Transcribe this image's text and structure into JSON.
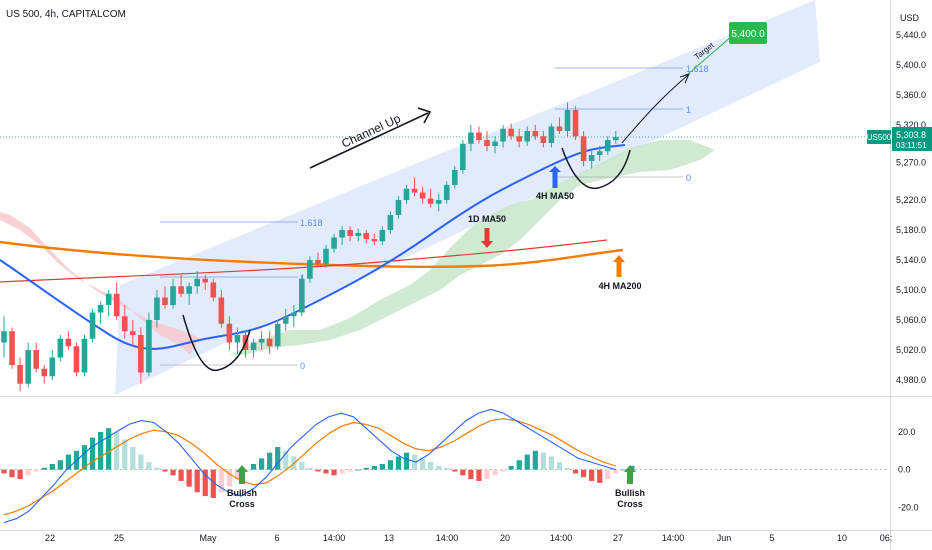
{
  "header": {
    "title": "US 500, 4h, CAPITALCOM"
  },
  "currency": "USD",
  "colors": {
    "up": "#26a69a",
    "down": "#ef5350",
    "ma50": "#2962ff",
    "ma200": "#f57c00",
    "ma1d": "#e53935",
    "channel": "#dce7fb",
    "cloud_bull": "#c8e6c9",
    "cloud_bear": "#f8c8cc",
    "fib": "#5b8def",
    "price_tag": "#089981",
    "target": "#2db84d",
    "macd_line": "#2962ff",
    "signal_line": "#f57c00"
  },
  "chart_data": [
    {
      "type": "candlestick",
      "title": "US 500, 4h, CAPITALCOM",
      "symbol": "US500",
      "last_price": "5,303.8",
      "countdown": "03:11:51",
      "ylim": [
        4960,
        5480
      ],
      "y_ticks": [
        "4,980.0",
        "5,020.0",
        "5,060.0",
        "5,100.0",
        "5,140.0",
        "5,180.0",
        "5,220.0",
        "5,270.0",
        "5,320.0",
        "5,360.0",
        "5,400.0",
        "5,440.0"
      ],
      "x_ticks": [
        "22",
        "25",
        "May",
        "6",
        "14:00",
        "13",
        "14:00",
        "20",
        "14:00",
        "27",
        "14:00",
        "Jun",
        "5",
        "10",
        "06:"
      ],
      "annotations": {
        "channel": "Channel Up",
        "target_label": "Target",
        "target_value": "5,400.0",
        "ma50_4h": "4H MA50",
        "ma50_1d": "1D MA50",
        "ma200_4h": "4H MA200",
        "fib_first": [
          "1.618",
          "1",
          "0"
        ],
        "fib_second": [
          "1.618",
          "1",
          "0"
        ]
      },
      "candles": [
        [
          5030,
          5065,
          5010,
          5045
        ],
        [
          5045,
          5050,
          4995,
          5000
        ],
        [
          5000,
          5010,
          4965,
          4975
        ],
        [
          4975,
          5030,
          4970,
          5020
        ],
        [
          5020,
          5030,
          4990,
          4995
        ],
        [
          4995,
          5000,
          4975,
          4985
        ],
        [
          4985,
          5020,
          4980,
          5010
        ],
        [
          5010,
          5040,
          5005,
          5035
        ],
        [
          5035,
          5045,
          5020,
          5025
        ],
        [
          5025,
          5030,
          4985,
          4990
        ],
        [
          4990,
          5040,
          4985,
          5035
        ],
        [
          5035,
          5075,
          5030,
          5070
        ],
        [
          5070,
          5085,
          5055,
          5080
        ],
        [
          5080,
          5100,
          5065,
          5095
        ],
        [
          5095,
          5110,
          5060,
          5065
        ],
        [
          5065,
          5080,
          5035,
          5045
        ],
        [
          5045,
          5060,
          5025,
          5040
        ],
        [
          5040,
          5050,
          4975,
          4990
        ],
        [
          4990,
          5070,
          4985,
          5060
        ],
        [
          5060,
          5100,
          5050,
          5090
        ],
        [
          5090,
          5105,
          5075,
          5080
        ],
        [
          5080,
          5115,
          5075,
          5105
        ],
        [
          5105,
          5120,
          5090,
          5095
        ],
        [
          5095,
          5110,
          5080,
          5105
        ],
        [
          5105,
          5125,
          5095,
          5115
        ],
        [
          5115,
          5120,
          5100,
          5110
        ],
        [
          5110,
          5115,
          5085,
          5090
        ],
        [
          5090,
          5100,
          5050,
          5055
        ],
        [
          5055,
          5065,
          5020,
          5030
        ],
        [
          5030,
          5050,
          5015,
          5040
        ],
        [
          5040,
          5045,
          5010,
          5020
        ],
        [
          5020,
          5035,
          5010,
          5030
        ],
        [
          5030,
          5045,
          5020,
          5035
        ],
        [
          5035,
          5045,
          5015,
          5025
        ],
        [
          5025,
          5060,
          5020,
          5055
        ],
        [
          5055,
          5075,
          5045,
          5065
        ],
        [
          5065,
          5080,
          5050,
          5070
        ],
        [
          5070,
          5120,
          5065,
          5115
        ],
        [
          5115,
          5145,
          5110,
          5140
        ],
        [
          5140,
          5150,
          5130,
          5135
        ],
        [
          5135,
          5160,
          5130,
          5155
        ],
        [
          5155,
          5175,
          5150,
          5170
        ],
        [
          5170,
          5185,
          5160,
          5180
        ],
        [
          5180,
          5185,
          5165,
          5172
        ],
        [
          5172,
          5182,
          5165,
          5176
        ],
        [
          5176,
          5180,
          5162,
          5168
        ],
        [
          5168,
          5175,
          5160,
          5165
        ],
        [
          5165,
          5185,
          5160,
          5180
        ],
        [
          5180,
          5205,
          5175,
          5200
        ],
        [
          5200,
          5225,
          5195,
          5220
        ],
        [
          5220,
          5240,
          5215,
          5235
        ],
        [
          5235,
          5250,
          5225,
          5230
        ],
        [
          5230,
          5238,
          5215,
          5222
        ],
        [
          5222,
          5235,
          5210,
          5215
        ],
        [
          5215,
          5228,
          5205,
          5220
        ],
        [
          5220,
          5245,
          5215,
          5240
        ],
        [
          5240,
          5265,
          5235,
          5260
        ],
        [
          5260,
          5300,
          5255,
          5295
        ],
        [
          5295,
          5320,
          5285,
          5310
        ],
        [
          5310,
          5318,
          5295,
          5300
        ],
        [
          5300,
          5312,
          5285,
          5292
        ],
        [
          5292,
          5305,
          5282,
          5298
        ],
        [
          5298,
          5320,
          5290,
          5315
        ],
        [
          5315,
          5322,
          5300,
          5305
        ],
        [
          5305,
          5315,
          5290,
          5298
        ],
        [
          5298,
          5318,
          5292,
          5312
        ],
        [
          5312,
          5320,
          5300,
          5305
        ],
        [
          5305,
          5312,
          5290,
          5296
        ],
        [
          5296,
          5322,
          5290,
          5318
        ],
        [
          5318,
          5330,
          5308,
          5312
        ],
        [
          5312,
          5350,
          5305,
          5340
        ],
        [
          5340,
          5345,
          5300,
          5305
        ],
        [
          5305,
          5312,
          5265,
          5272
        ],
        [
          5272,
          5285,
          5262,
          5280
        ],
        [
          5280,
          5292,
          5272,
          5285
        ],
        [
          5285,
          5305,
          5280,
          5300
        ],
        [
          5300,
          5312,
          5295,
          5304
        ]
      ],
      "macd": {
        "ylim": [
          -32,
          38
        ],
        "y_ticks": [
          "20.0",
          "0.0",
          "-20.0"
        ],
        "annotations": [
          "Bullish Cross",
          "Bullish Cross"
        ],
        "histogram": [
          -2,
          -4,
          -5,
          -3,
          -1,
          1,
          3,
          5,
          8,
          10,
          13,
          17,
          20,
          22,
          20,
          16,
          12,
          8,
          4,
          1,
          -1,
          -3,
          -6,
          -9,
          -12,
          -14,
          -15,
          -12,
          -9,
          -5,
          -1,
          3,
          6,
          9,
          12,
          10,
          7,
          4,
          1,
          -1,
          -2,
          -3,
          -2,
          -1,
          0,
          1,
          2,
          3,
          5,
          7,
          9,
          8,
          6,
          4,
          2,
          1,
          -1,
          -3,
          -5,
          -6,
          -5,
          -3,
          -1,
          2,
          5,
          8,
          10,
          9,
          7,
          4,
          1,
          -2,
          -4,
          -6,
          -7,
          -5,
          -2,
          0,
          2
        ],
        "macd_line": [
          -28,
          -26,
          -22,
          -15,
          -8,
          0,
          6,
          12,
          16,
          20,
          24,
          26,
          25,
          20,
          14,
          6,
          -2,
          -8,
          -12,
          -14,
          -10,
          -4,
          4,
          12,
          18,
          24,
          28,
          30,
          28,
          22,
          16,
          10,
          6,
          4,
          8,
          14,
          20,
          26,
          30,
          32,
          30,
          26,
          22,
          18,
          14,
          10,
          6,
          4,
          2,
          0
        ],
        "signal_line": [
          -24,
          -22,
          -19,
          -15,
          -11,
          -6,
          -1,
          4,
          8,
          12,
          16,
          19,
          21,
          20,
          18,
          14,
          9,
          3,
          -2,
          -6,
          -8,
          -7,
          -3,
          2,
          8,
          14,
          19,
          23,
          25,
          24,
          22,
          18,
          14,
          11,
          10,
          12,
          15,
          19,
          23,
          26,
          27,
          26,
          24,
          21,
          18,
          14,
          10,
          7,
          4,
          2
        ]
      }
    }
  ]
}
